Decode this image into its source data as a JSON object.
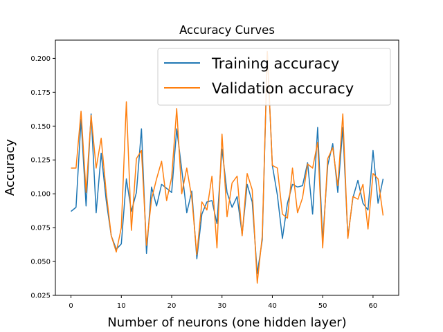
{
  "chart_data": {
    "type": "line",
    "title": "Accuracy Curves",
    "xlabel": "Number of neurons (one hidden layer)",
    "ylabel": "Accuracy",
    "xlim": [
      -3.1,
      65.1
    ],
    "ylim": [
      0.025,
      0.2135
    ],
    "x_ticks": [
      0,
      10,
      20,
      30,
      40,
      50,
      60
    ],
    "y_ticks": [
      0.025,
      0.05,
      0.075,
      0.1,
      0.125,
      0.15,
      0.175,
      0.2
    ],
    "y_tick_labels": [
      "0.025",
      "0.050",
      "0.075",
      "0.100",
      "0.125",
      "0.150",
      "0.175",
      "0.200"
    ],
    "legend_position": "upper-right",
    "grid": false,
    "x": [
      0,
      1,
      2,
      3,
      4,
      5,
      6,
      7,
      8,
      9,
      10,
      11,
      12,
      13,
      14,
      15,
      16,
      17,
      18,
      19,
      20,
      21,
      22,
      23,
      24,
      25,
      26,
      27,
      28,
      29,
      30,
      31,
      32,
      33,
      34,
      35,
      36,
      37,
      38,
      39,
      40,
      41,
      42,
      43,
      44,
      45,
      46,
      47,
      48,
      49,
      50,
      51,
      52,
      53,
      54,
      55,
      56,
      57,
      58,
      59,
      60,
      61,
      62
    ],
    "series": [
      {
        "name": "Training accuracy",
        "color": "#1f77b4",
        "values": [
          0.087,
          0.09,
          0.155,
          0.091,
          0.159,
          0.086,
          0.13,
          0.095,
          0.069,
          0.059,
          0.063,
          0.111,
          0.087,
          0.101,
          0.148,
          0.056,
          0.105,
          0.091,
          0.107,
          0.104,
          0.101,
          0.148,
          0.118,
          0.086,
          0.102,
          0.052,
          0.085,
          0.094,
          0.095,
          0.078,
          0.133,
          0.101,
          0.09,
          0.098,
          0.07,
          0.107,
          0.094,
          0.041,
          0.066,
          0.205,
          0.121,
          0.099,
          0.067,
          0.093,
          0.107,
          0.105,
          0.106,
          0.123,
          0.085,
          0.149,
          0.065,
          0.121,
          0.137,
          0.101,
          0.149,
          0.068,
          0.097,
          0.11,
          0.093,
          0.088,
          0.132,
          0.093,
          0.111
        ]
      },
      {
        "name": "Validation accuracy",
        "color": "#ff7f0e",
        "values": [
          0.119,
          0.119,
          0.161,
          0.101,
          0.158,
          0.119,
          0.141,
          0.101,
          0.069,
          0.057,
          0.075,
          0.168,
          0.073,
          0.126,
          0.132,
          0.062,
          0.096,
          0.111,
          0.124,
          0.095,
          0.112,
          0.163,
          0.1,
          0.119,
          0.097,
          0.055,
          0.094,
          0.088,
          0.113,
          0.06,
          0.144,
          0.083,
          0.108,
          0.113,
          0.069,
          0.115,
          0.103,
          0.034,
          0.069,
          0.205,
          0.121,
          0.119,
          0.085,
          0.082,
          0.119,
          0.086,
          0.097,
          0.122,
          0.119,
          0.138,
          0.06,
          0.126,
          0.134,
          0.106,
          0.159,
          0.067,
          0.098,
          0.096,
          0.107,
          0.074,
          0.115,
          0.111,
          0.084
        ]
      }
    ]
  }
}
